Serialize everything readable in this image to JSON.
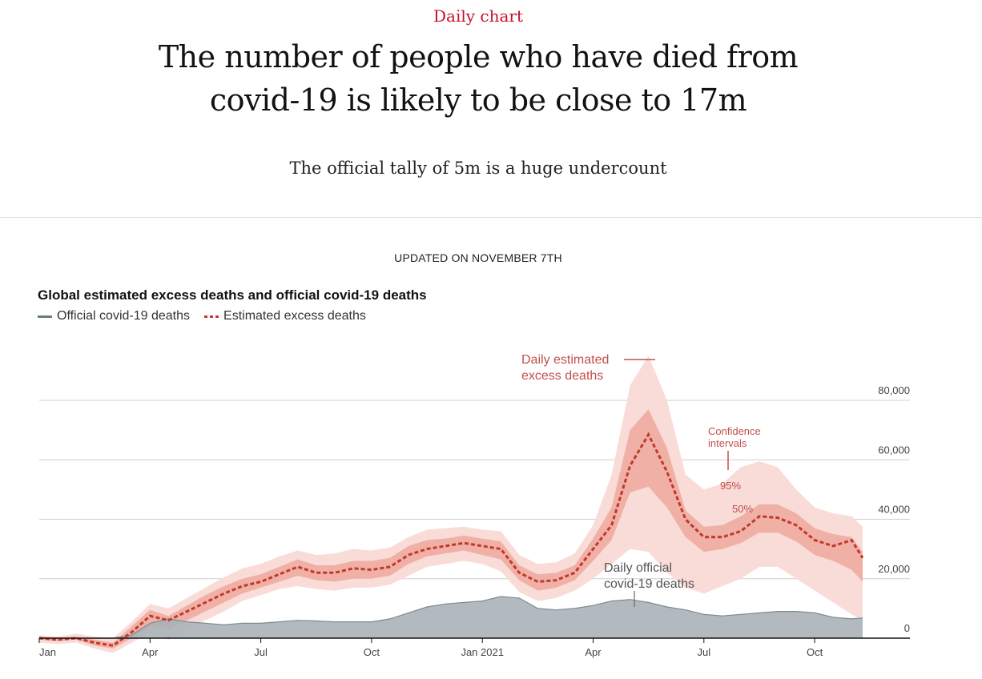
{
  "header": {
    "kicker": "Daily chart",
    "headline_line1": "The number of people who have died from",
    "headline_line2": "covid-19 is likely to be close to 17m",
    "subheadline": "The official tally of 5m is a huge undercount"
  },
  "updated": "UPDATED ON NOVEMBER 7TH",
  "colors": {
    "official_fill": "#aab3b8",
    "official_line": "#7d8a91",
    "estimate_line": "#c0392b",
    "ci95": "#f9dcd7",
    "ci50": "#eea89e",
    "annotation_red": "#c0504d"
  },
  "chart_data": {
    "type": "area",
    "title": "Global estimated excess deaths and official covid-19 deaths",
    "legend": [
      {
        "label": "Official covid-19 deaths",
        "style": "solid"
      },
      {
        "label": "Estimated excess deaths",
        "style": "dotted"
      }
    ],
    "legend_placement": "top-left",
    "xlabel": "",
    "ylabel": "",
    "x_unit": "months since Jan 2020",
    "x_ticks": [
      {
        "value": 0,
        "label": "Jan"
      },
      {
        "value": 3,
        "label": "Apr"
      },
      {
        "value": 6,
        "label": "Jul"
      },
      {
        "value": 9,
        "label": "Oct"
      },
      {
        "value": 12,
        "label": "Jan 2021"
      },
      {
        "value": 15,
        "label": "Apr"
      },
      {
        "value": 18,
        "label": "Jul"
      },
      {
        "value": 21,
        "label": "Oct"
      }
    ],
    "y_ticks": [
      0,
      20000,
      40000,
      60000,
      80000
    ],
    "y_tick_labels": [
      "0",
      "20,000",
      "40,000",
      "60,000",
      "80,000"
    ],
    "ylim": [
      0,
      80000
    ],
    "xlim": [
      0,
      23.3
    ],
    "grid": true,
    "annotations": {
      "estimate": [
        "Daily estimated",
        "excess deaths"
      ],
      "ci": [
        "Confidence",
        "intervals"
      ],
      "ci95": "95%",
      "ci50": "50%",
      "official": [
        "Daily official",
        "covid-19 deaths"
      ]
    },
    "x": [
      0,
      0.5,
      1,
      1.5,
      2,
      2.5,
      3,
      3.5,
      4,
      4.5,
      5,
      5.5,
      6,
      6.5,
      7,
      7.5,
      8,
      8.5,
      9,
      9.5,
      10,
      10.5,
      11,
      11.5,
      12,
      12.5,
      13,
      13.5,
      14,
      14.5,
      15,
      15.5,
      16,
      16.5,
      17,
      17.5,
      18,
      18.5,
      19,
      19.5,
      20,
      20.5,
      21,
      21.5,
      22,
      22.3
    ],
    "series": [
      {
        "name": "Official covid-19 deaths",
        "values": [
          0,
          0,
          0,
          0,
          0,
          1000,
          5000,
          6500,
          5500,
          5000,
          4500,
          5000,
          5000,
          5500,
          6000,
          5800,
          5500,
          5500,
          5500,
          6500,
          8500,
          10500,
          11500,
          12000,
          12500,
          14000,
          13500,
          10000,
          9500,
          10000,
          11000,
          12500,
          13000,
          12000,
          10500,
          9500,
          8000,
          7500,
          8000,
          8500,
          9000,
          9000,
          8500,
          7000,
          6500,
          6800
        ]
      },
      {
        "name": "Estimated excess deaths",
        "values": [
          0,
          -500,
          0,
          -1500,
          -2500,
          2000,
          7500,
          6000,
          9000,
          12000,
          15000,
          17500,
          19000,
          21500,
          24000,
          22000,
          22000,
          23500,
          23000,
          24000,
          28000,
          30000,
          31000,
          32000,
          31000,
          30000,
          22000,
          19000,
          19500,
          22000,
          30000,
          38000,
          58000,
          68500,
          56000,
          40000,
          34000,
          34000,
          36000,
          41000,
          40500,
          38000,
          33000,
          31000,
          33000,
          27000
        ]
      },
      {
        "name": "50% CI lower",
        "values": [
          -500,
          -1000,
          -500,
          -2500,
          -3500,
          0,
          4000,
          3000,
          6000,
          9000,
          12000,
          15000,
          17000,
          19000,
          21000,
          19500,
          19000,
          20000,
          20000,
          21000,
          25000,
          27500,
          28500,
          29500,
          28000,
          26500,
          19500,
          16000,
          17000,
          19500,
          26000,
          33000,
          49000,
          51000,
          44000,
          34000,
          29000,
          30000,
          32000,
          35500,
          35500,
          32500,
          28000,
          26000,
          23000,
          19000
        ]
      },
      {
        "name": "50% CI upper",
        "values": [
          500,
          0,
          500,
          -500,
          -1500,
          4000,
          9500,
          7500,
          11000,
          14500,
          17500,
          20000,
          21500,
          24000,
          26500,
          24500,
          24500,
          26000,
          26000,
          27000,
          31000,
          33000,
          33500,
          34500,
          33500,
          32500,
          24500,
          21500,
          22000,
          24500,
          33500,
          44000,
          70000,
          77000,
          64000,
          43000,
          37500,
          38000,
          41000,
          45000,
          45000,
          42000,
          37000,
          35000,
          34000,
          29000
        ]
      },
      {
        "name": "95% CI lower",
        "values": [
          -1500,
          -2000,
          -1500,
          -3500,
          -5000,
          -1500,
          2000,
          -500,
          3000,
          6000,
          9000,
          12500,
          14500,
          16500,
          17500,
          16500,
          16000,
          17000,
          17000,
          18000,
          21000,
          24000,
          25000,
          26000,
          25000,
          22500,
          15500,
          12500,
          13500,
          16000,
          20000,
          25000,
          30000,
          29000,
          22000,
          17000,
          15000,
          17500,
          20000,
          24000,
          24000,
          20000,
          16000,
          12000,
          8000,
          6000
        ]
      },
      {
        "name": "95% CI upper",
        "values": [
          1000,
          500,
          1500,
          500,
          0,
          5500,
          11500,
          10000,
          13500,
          17000,
          20500,
          23500,
          25000,
          27500,
          29500,
          28000,
          28500,
          30000,
          29500,
          30500,
          34000,
          36500,
          37000,
          37500,
          36500,
          36000,
          28000,
          25000,
          25500,
          28500,
          38000,
          55000,
          85000,
          95000,
          80000,
          55000,
          50000,
          52000,
          57500,
          59500,
          57500,
          50000,
          44000,
          42000,
          41000,
          37500
        ]
      }
    ]
  }
}
